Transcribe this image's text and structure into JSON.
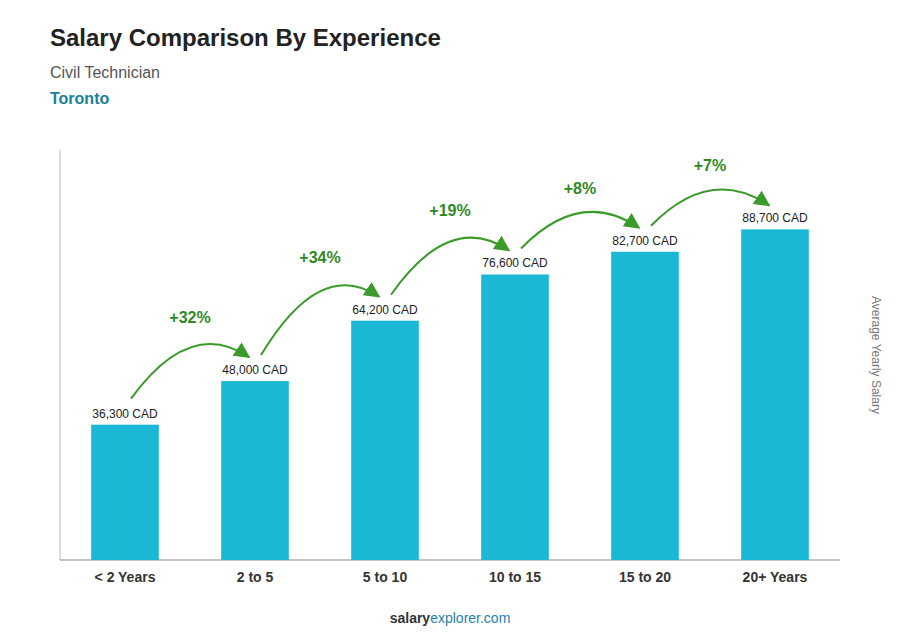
{
  "chart_data": {
    "type": "bar",
    "title": "Salary Comparison By Experience",
    "subtitle": [
      "Civil Technician",
      "Toronto"
    ],
    "ylabel": "Average Yearly Salary",
    "categories": [
      "< 2 Years",
      "2 to 5",
      "5 to 10",
      "10 to 15",
      "15 to 20",
      "20+ Years"
    ],
    "values": [
      36300,
      48000,
      64200,
      76600,
      82700,
      88700
    ],
    "value_labels": [
      "36,300 CAD",
      "48,000 CAD",
      "64,200 CAD",
      "76,600 CAD",
      "82,700 CAD",
      "88,700 CAD"
    ],
    "data_labels": true,
    "annotations": [
      "+32%",
      "+34%",
      "+19%",
      "+8%",
      "+7%"
    ],
    "footer": [
      "salary",
      "explorer.com"
    ],
    "color": "#1ab8d4",
    "ylim": [
      0,
      110000
    ],
    "grid": false,
    "tick_labels": "x"
  }
}
